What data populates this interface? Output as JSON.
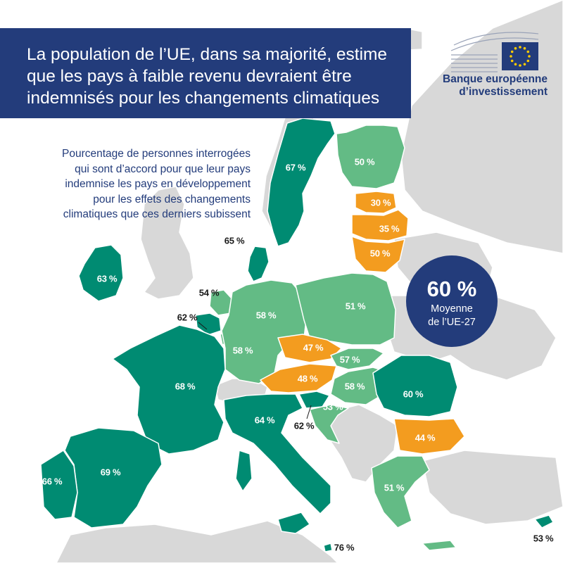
{
  "header": {
    "title_lines": [
      "La population de l’UE, dans sa majorité, estime",
      "que les pays à faible revenu devraient être",
      "indemnisés pour les changements climatiques"
    ]
  },
  "brand": {
    "name_line1": "Banque européenne",
    "name_line2": "d’investissement",
    "flag_color": "#233c7b",
    "star_color": "#ffcc00"
  },
  "subtitle_lines": [
    "Pourcentage de personnes interrogées",
    "qui sont d’accord pour que leur pays",
    "indemnise les pays en développement",
    "pour les effets des changements",
    "climatiques que ces derniers subissent"
  ],
  "average": {
    "value": "60 %",
    "line1": "Moyenne",
    "line2": "de l’UE-27"
  },
  "colors": {
    "high": "#008b72",
    "medium": "#63bb85",
    "low": "#f39c1f",
    "non_eu": "#d8d8d8",
    "background": "#ffffff",
    "title_bg": "#233c7b"
  },
  "countries": {
    "sweden": "67 %",
    "finland": "50 %",
    "estonia": "30 %",
    "latvia": "35 %",
    "lithuania": "50 %",
    "denmark": "65 %",
    "ireland": "63 %",
    "netherlands": "54 %",
    "belgium": "62 %",
    "luxembourg": "58 %",
    "germany": "58 %",
    "poland": "51 %",
    "czechia": "47 %",
    "slovakia": "57 %",
    "austria": "48 %",
    "hungary": "58 %",
    "slovenia": "62 %",
    "croatia": "53 %",
    "romania": "60 %",
    "bulgaria": "44 %",
    "france": "68 %",
    "italy": "64 %",
    "spain": "69 %",
    "portugal": "66 %",
    "greece": "51 %",
    "malta": "76 %",
    "cyprus": "53 %"
  }
}
